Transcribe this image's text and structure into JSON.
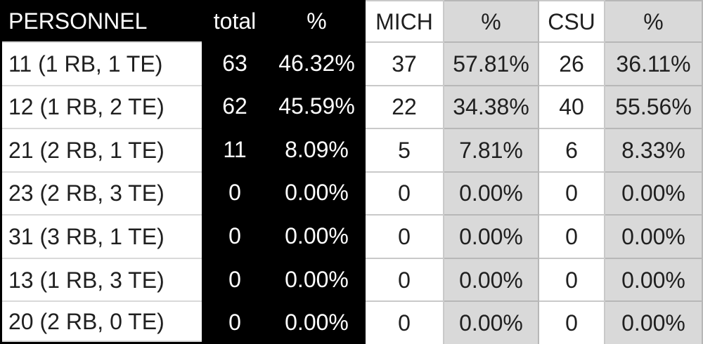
{
  "chart_data": {
    "type": "table",
    "columns": [
      {
        "key": "personnel",
        "label": "PERSONNEL"
      },
      {
        "key": "total",
        "label": "total"
      },
      {
        "key": "total_pct",
        "label": "%"
      },
      {
        "key": "mich",
        "label": "MICH"
      },
      {
        "key": "mich_pct",
        "label": "%"
      },
      {
        "key": "csu",
        "label": "CSU"
      },
      {
        "key": "csu_pct",
        "label": "%"
      }
    ],
    "rows": [
      {
        "personnel": "11 (1 RB, 1 TE)",
        "total": "63",
        "total_pct": "46.32%",
        "mich": "37",
        "mich_pct": "57.81%",
        "csu": "26",
        "csu_pct": "36.11%"
      },
      {
        "personnel": "12 (1 RB, 2 TE)",
        "total": "62",
        "total_pct": "45.59%",
        "mich": "22",
        "mich_pct": "34.38%",
        "csu": "40",
        "csu_pct": "55.56%"
      },
      {
        "personnel": "21 (2 RB, 1 TE)",
        "total": "11",
        "total_pct": "8.09%",
        "mich": "5",
        "mich_pct": "7.81%",
        "csu": "6",
        "csu_pct": "8.33%"
      },
      {
        "personnel": "23 (2 RB, 3 TE)",
        "total": "0",
        "total_pct": "0.00%",
        "mich": "0",
        "mich_pct": "0.00%",
        "csu": "0",
        "csu_pct": "0.00%"
      },
      {
        "personnel": "31 (3 RB, 1 TE)",
        "total": "0",
        "total_pct": "0.00%",
        "mich": "0",
        "mich_pct": "0.00%",
        "csu": "0",
        "csu_pct": "0.00%"
      },
      {
        "personnel": "13 (1 RB, 3 TE)",
        "total": "0",
        "total_pct": "0.00%",
        "mich": "0",
        "mich_pct": "0.00%",
        "csu": "0",
        "csu_pct": "0.00%"
      },
      {
        "personnel": "20 (2 RB, 0 TE)",
        "total": "0",
        "total_pct": "0.00%",
        "mich": "0",
        "mich_pct": "0.00%",
        "csu": "0",
        "csu_pct": "0.00%"
      }
    ]
  },
  "colors": {
    "header_bg": "#000000",
    "stat_section_bg": "#000000",
    "white_cell_fill": "#ffffff",
    "pct_cell_fill": "#d9d9d9",
    "grid_border": "#b7b7b7",
    "label_row_border": "#d9d9d9",
    "text_on_dark": "#ffffff",
    "text_on_light": "#1f1f1f"
  }
}
